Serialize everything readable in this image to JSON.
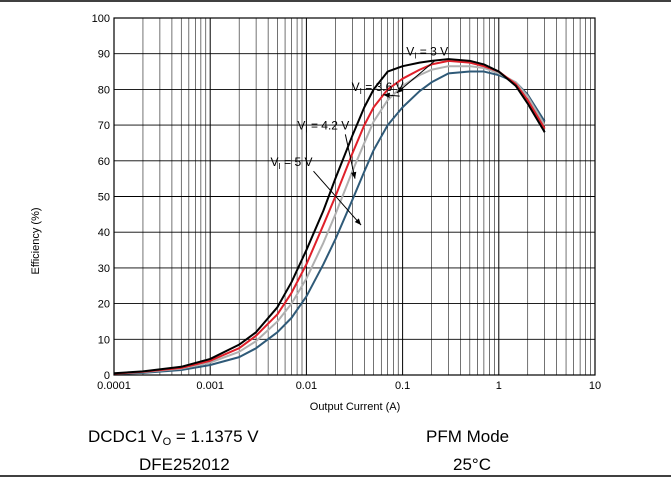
{
  "chart_data": {
    "type": "line",
    "xlabel": "Output Current (A)",
    "ylabel": "Efficiency (%)",
    "xscale": "log",
    "xlim": [
      0.0001,
      10
    ],
    "ylim": [
      0,
      100
    ],
    "x_ticks": [
      "0.0001",
      "0.001",
      "0.01",
      "0.1",
      "1",
      "10"
    ],
    "y_ticks": [
      "0",
      "10",
      "20",
      "30",
      "40",
      "50",
      "60",
      "70",
      "80",
      "90",
      "100"
    ],
    "grid": true,
    "series": [
      {
        "name": "VI = 3 V",
        "label_main": "V",
        "label_sub": "I",
        "label_rest": " = 3 V",
        "color": "#000000",
        "points": [
          [
            0.0001,
            0.5
          ],
          [
            0.0002,
            1.0
          ],
          [
            0.0005,
            2.3
          ],
          [
            0.001,
            4.5
          ],
          [
            0.002,
            8.5
          ],
          [
            0.003,
            12
          ],
          [
            0.005,
            19
          ],
          [
            0.007,
            26
          ],
          [
            0.01,
            35
          ],
          [
            0.015,
            46
          ],
          [
            0.02,
            55
          ],
          [
            0.03,
            67
          ],
          [
            0.04,
            75
          ],
          [
            0.05,
            80
          ],
          [
            0.07,
            85
          ],
          [
            0.1,
            86.5
          ],
          [
            0.15,
            87.5
          ],
          [
            0.2,
            88
          ],
          [
            0.3,
            88.5
          ],
          [
            0.5,
            88
          ],
          [
            0.7,
            87
          ],
          [
            1,
            85
          ],
          [
            1.5,
            81
          ],
          [
            2,
            76
          ],
          [
            3,
            68
          ]
        ]
      },
      {
        "name": "VI = 3.6 V",
        "label_main": "V",
        "label_sub": "I",
        "label_rest": " = 3.6 V",
        "color": "#e0202a",
        "points": [
          [
            0.0001,
            0.4
          ],
          [
            0.0002,
            0.9
          ],
          [
            0.0005,
            2.0
          ],
          [
            0.001,
            4.0
          ],
          [
            0.002,
            7.5
          ],
          [
            0.003,
            11
          ],
          [
            0.005,
            17
          ],
          [
            0.007,
            23
          ],
          [
            0.01,
            31
          ],
          [
            0.015,
            42
          ],
          [
            0.02,
            50
          ],
          [
            0.03,
            62
          ],
          [
            0.04,
            70
          ],
          [
            0.05,
            75
          ],
          [
            0.07,
            80
          ],
          [
            0.1,
            83
          ],
          [
            0.15,
            85.5
          ],
          [
            0.2,
            87
          ],
          [
            0.3,
            88
          ],
          [
            0.5,
            87.5
          ],
          [
            0.7,
            86.5
          ],
          [
            1,
            85
          ],
          [
            1.5,
            81.5
          ],
          [
            2,
            77
          ],
          [
            3,
            69
          ]
        ]
      },
      {
        "name": "VI = 4.2 V",
        "label_main": "V",
        "label_sub": "I",
        "label_rest": " = 4.2 V",
        "color": "#b0b0b0",
        "points": [
          [
            0.0001,
            0.35
          ],
          [
            0.0002,
            0.8
          ],
          [
            0.0005,
            1.8
          ],
          [
            0.001,
            3.5
          ],
          [
            0.002,
            6.5
          ],
          [
            0.003,
            9.5
          ],
          [
            0.005,
            15
          ],
          [
            0.007,
            20
          ],
          [
            0.01,
            27
          ],
          [
            0.015,
            37
          ],
          [
            0.02,
            45
          ],
          [
            0.03,
            57
          ],
          [
            0.04,
            65
          ],
          [
            0.05,
            71
          ],
          [
            0.07,
            77
          ],
          [
            0.1,
            81
          ],
          [
            0.15,
            84
          ],
          [
            0.2,
            85.5
          ],
          [
            0.3,
            86.5
          ],
          [
            0.5,
            86.5
          ],
          [
            0.7,
            86
          ],
          [
            1,
            84.5
          ],
          [
            1.5,
            82
          ],
          [
            2,
            78
          ],
          [
            3,
            70
          ]
        ]
      },
      {
        "name": "VI = 5 V",
        "label_main": "V",
        "label_sub": "I",
        "label_rest": " = 5 V",
        "color": "#2f5a78",
        "points": [
          [
            0.0001,
            0.3
          ],
          [
            0.0002,
            0.6
          ],
          [
            0.0005,
            1.4
          ],
          [
            0.001,
            2.8
          ],
          [
            0.002,
            5
          ],
          [
            0.003,
            7.5
          ],
          [
            0.005,
            12
          ],
          [
            0.007,
            16
          ],
          [
            0.01,
            22
          ],
          [
            0.015,
            31
          ],
          [
            0.02,
            38
          ],
          [
            0.03,
            49
          ],
          [
            0.04,
            57
          ],
          [
            0.05,
            63
          ],
          [
            0.07,
            70
          ],
          [
            0.1,
            75
          ],
          [
            0.15,
            79.5
          ],
          [
            0.2,
            82
          ],
          [
            0.3,
            84.5
          ],
          [
            0.5,
            85
          ],
          [
            0.7,
            85
          ],
          [
            1,
            84
          ],
          [
            1.5,
            82
          ],
          [
            2,
            78.5
          ],
          [
            3,
            71
          ]
        ]
      }
    ],
    "annotations": [
      {
        "series": 0,
        "text_main": "V",
        "text_sub": "I",
        "text_rest": " = 3 V",
        "label_x": 0.18,
        "label_y": 89.5,
        "arrow_x": 0.087,
        "arrow_y": 79
      },
      {
        "series": 1,
        "text_main": "V",
        "text_sub": "I",
        "text_rest": " = 3.6 V",
        "label_x": 0.055,
        "label_y": 79.5,
        "arrow_x": 0.063,
        "arrow_y": 78.5
      },
      {
        "series": 2,
        "text_main": "V",
        "text_sub": "I",
        "text_rest": " = 4.2 V",
        "label_x": 0.015,
        "label_y": 68.8,
        "arrow_x": 0.032,
        "arrow_y": 55
      },
      {
        "series": 3,
        "text_main": "V",
        "text_sub": "I",
        "text_rest": " = 5 V",
        "label_x": 0.007,
        "label_y": 58.5,
        "arrow_x": 0.037,
        "arrow_y": 42
      }
    ]
  },
  "captions": {
    "line1_left_main": "DCDC1 V",
    "line1_left_sub": "O",
    "line1_left_rest": " = 1.1375 V",
    "line1_right": "PFM Mode",
    "line2_left": "DFE252012",
    "line2_right": "25°C"
  }
}
